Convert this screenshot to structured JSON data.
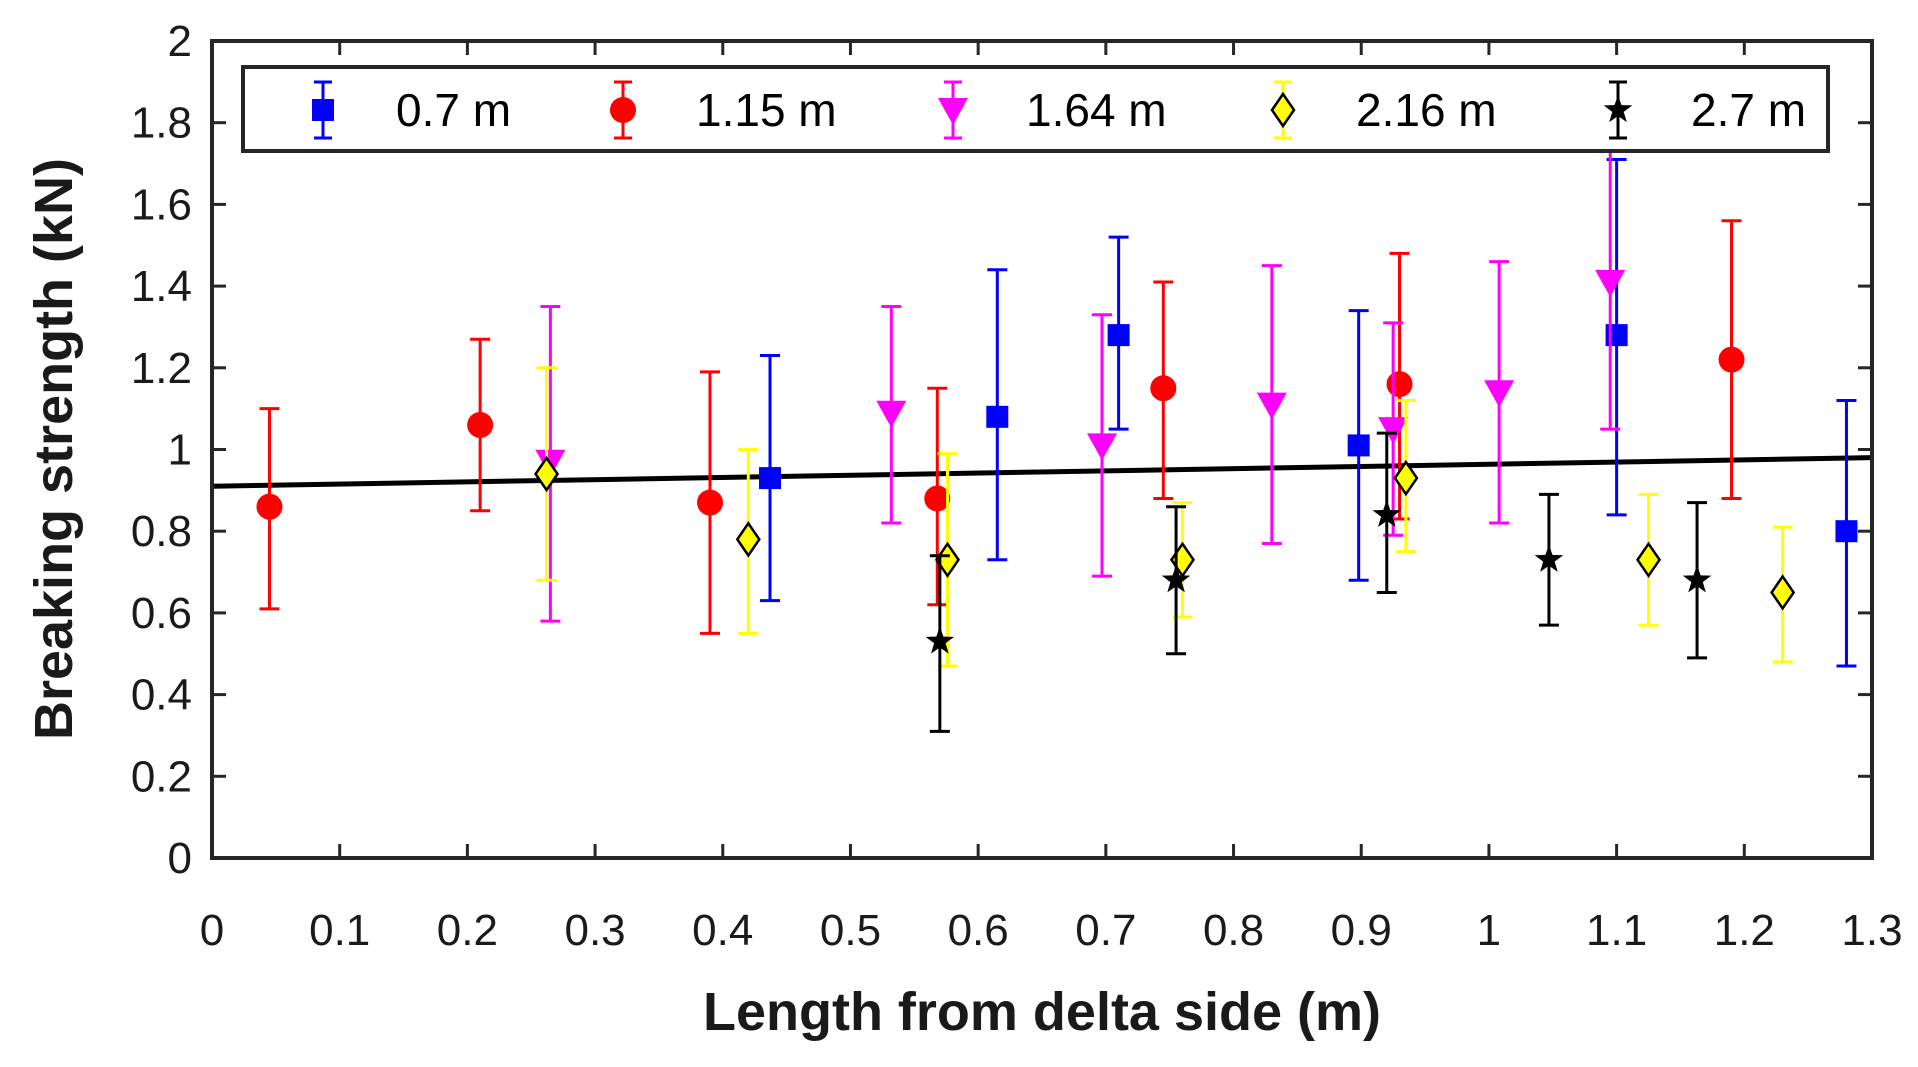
{
  "chart_data": {
    "type": "scatter",
    "title": "",
    "xlabel": "Length from delta side (m)",
    "ylabel": "Breaking strength (kN)",
    "xlim": [
      0,
      1.3
    ],
    "ylim": [
      0,
      2
    ],
    "xticks": [
      0,
      0.1,
      0.2,
      0.3,
      0.4,
      0.5,
      0.6,
      0.7,
      0.8,
      0.9,
      1,
      1.1,
      1.2,
      1.3
    ],
    "xtick_labels": [
      "0",
      "0.1",
      "0.2",
      "0.3",
      "0.4",
      "0.5",
      "0.6",
      "0.7",
      "0.8",
      "0.9",
      "1",
      "1.1",
      "1.2",
      "1.3"
    ],
    "yticks": [
      0,
      0.2,
      0.4,
      0.6,
      0.8,
      1,
      1.2,
      1.4,
      1.6,
      1.8,
      2
    ],
    "ytick_labels": [
      "0",
      "0.2",
      "0.4",
      "0.6",
      "0.8",
      "1",
      "1.2",
      "1.4",
      "1.6",
      "1.8",
      "2"
    ],
    "grid": false,
    "legend_position": "top",
    "series": [
      {
        "name": "0.7 m",
        "color": "#0000ff",
        "marker": "square",
        "points": [
          {
            "x": 0.437,
            "y": 0.93,
            "low": 0.63,
            "high": 1.23
          },
          {
            "x": 0.615,
            "y": 1.08,
            "low": 0.73,
            "high": 1.44
          },
          {
            "x": 0.71,
            "y": 1.28,
            "low": 1.05,
            "high": 1.52
          },
          {
            "x": 0.898,
            "y": 1.01,
            "low": 0.68,
            "high": 1.34
          },
          {
            "x": 1.1,
            "y": 1.28,
            "low": 0.84,
            "high": 1.71
          },
          {
            "x": 1.28,
            "y": 0.8,
            "low": 0.47,
            "high": 1.12
          }
        ]
      },
      {
        "name": "1.15 m",
        "color": "#ff0000",
        "marker": "circle",
        "points": [
          {
            "x": 0.045,
            "y": 0.86,
            "low": 0.61,
            "high": 1.1
          },
          {
            "x": 0.21,
            "y": 1.06,
            "low": 0.85,
            "high": 1.27
          },
          {
            "x": 0.39,
            "y": 0.87,
            "low": 0.55,
            "high": 1.19
          },
          {
            "x": 0.568,
            "y": 0.88,
            "low": 0.62,
            "high": 1.15
          },
          {
            "x": 0.745,
            "y": 1.15,
            "low": 0.88,
            "high": 1.41
          },
          {
            "x": 0.93,
            "y": 1.16,
            "low": 0.83,
            "high": 1.48
          },
          {
            "x": 1.19,
            "y": 1.22,
            "low": 0.88,
            "high": 1.56
          }
        ]
      },
      {
        "name": "1.64 m",
        "color": "#ff00ff",
        "marker": "triangle-down",
        "points": [
          {
            "x": 0.265,
            "y": 0.97,
            "low": 0.58,
            "high": 1.35
          },
          {
            "x": 0.532,
            "y": 1.09,
            "low": 0.82,
            "high": 1.35
          },
          {
            "x": 0.697,
            "y": 1.01,
            "low": 0.69,
            "high": 1.33
          },
          {
            "x": 0.83,
            "y": 1.11,
            "low": 0.77,
            "high": 1.45
          },
          {
            "x": 0.925,
            "y": 1.05,
            "low": 0.79,
            "high": 1.31
          },
          {
            "x": 1.008,
            "y": 1.14,
            "low": 0.82,
            "high": 1.46
          },
          {
            "x": 1.095,
            "y": 1.41,
            "low": 1.05,
            "high": 1.73
          }
        ]
      },
      {
        "name": "2.16 m",
        "color": "#ffff00",
        "marker": "diamond",
        "points": [
          {
            "x": 0.262,
            "y": 0.94,
            "low": 0.68,
            "high": 1.2
          },
          {
            "x": 0.42,
            "y": 0.78,
            "low": 0.55,
            "high": 1.0
          },
          {
            "x": 0.576,
            "y": 0.73,
            "low": 0.47,
            "high": 0.99
          },
          {
            "x": 0.76,
            "y": 0.73,
            "low": 0.59,
            "high": 0.87
          },
          {
            "x": 0.935,
            "y": 0.93,
            "low": 0.75,
            "high": 1.12
          },
          {
            "x": 1.125,
            "y": 0.73,
            "low": 0.57,
            "high": 0.89
          },
          {
            "x": 1.23,
            "y": 0.65,
            "low": 0.48,
            "high": 0.81
          }
        ]
      },
      {
        "name": "2.7 m",
        "color": "#000000",
        "marker": "star",
        "points": [
          {
            "x": 0.57,
            "y": 0.53,
            "low": 0.31,
            "high": 0.74
          },
          {
            "x": 0.755,
            "y": 0.68,
            "low": 0.5,
            "high": 0.86
          },
          {
            "x": 0.92,
            "y": 0.84,
            "low": 0.65,
            "high": 1.04
          },
          {
            "x": 1.047,
            "y": 0.73,
            "low": 0.57,
            "high": 0.89
          },
          {
            "x": 1.163,
            "y": 0.68,
            "low": 0.49,
            "high": 0.87
          }
        ]
      }
    ],
    "trend_line": {
      "color": "#000000",
      "points": [
        {
          "x": 0,
          "y": 0.91
        },
        {
          "x": 1.3,
          "y": 0.98
        }
      ]
    }
  }
}
